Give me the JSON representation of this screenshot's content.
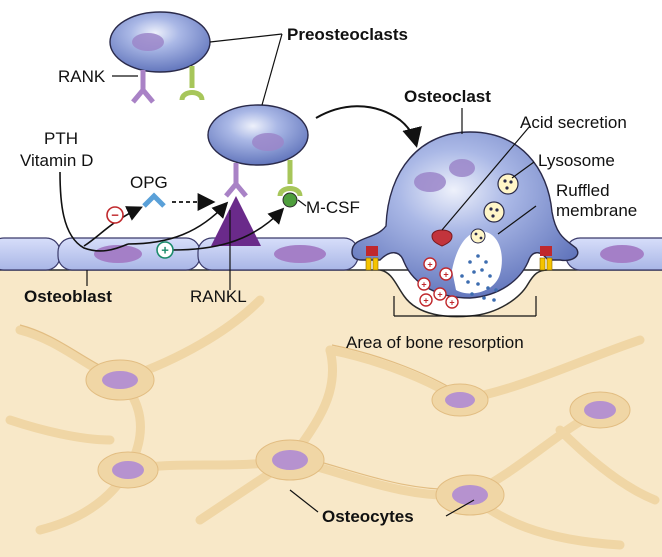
{
  "labels": {
    "preosteoclasts": "Preosteoclasts",
    "rank": "RANK",
    "osteoclast": "Osteoclast",
    "acid_secretion": "Acid secretion",
    "lysosome": "Lysosome",
    "ruffled_line1": "Ruffled",
    "ruffled_line2": "membrane",
    "pth": "PTH",
    "vitamin_d": "Vitamin D",
    "opg": "OPG",
    "mcsf": "M-CSF",
    "osteoblast": "Osteoblast",
    "rankl": "RANKL",
    "resorption_area": "Area of bone resorption",
    "osteocytes": "Osteocytes"
  },
  "signs": {
    "minus": "−",
    "plus": "+"
  },
  "colors": {
    "bone": "#f8e8c8",
    "cell_body": "#7f93d3",
    "cell_light": "#c9d3f2",
    "nucleus": "#a47fc7",
    "osteocyte_nucleus": "#b692cf",
    "rank_receptor": "#a982c6",
    "mcsf_receptor": "#a7c65a",
    "opg": "#5aa0d8",
    "acid": "#c2343c",
    "lysosome": "#fff6c8",
    "ruffle_dots": "#3d6db0",
    "seal_red": "#c0282c",
    "seal_yellow": "#f5c400"
  }
}
